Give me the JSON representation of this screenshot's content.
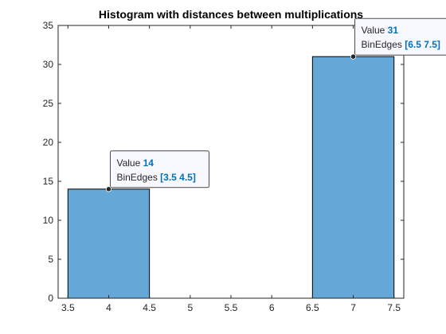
{
  "chart_data": {
    "type": "bar",
    "title": "Histogram with distances between multiplications",
    "xlabel": "",
    "ylabel": "",
    "xlim": [
      3.38,
      7.62
    ],
    "ylim": [
      0,
      35
    ],
    "xticks": [
      "3.5",
      "4",
      "4.5",
      "5",
      "5.5",
      "6",
      "6.5",
      "7",
      "7.5"
    ],
    "yticks": [
      "0",
      "5",
      "10",
      "15",
      "20",
      "25",
      "30",
      "35"
    ],
    "bins": [
      {
        "edges": [
          3.5,
          4.5
        ],
        "value": 14
      },
      {
        "edges": [
          4.5,
          5.5
        ],
        "value": 0
      },
      {
        "edges": [
          5.5,
          6.5
        ],
        "value": 0
      },
      {
        "edges": [
          6.5,
          7.5
        ],
        "value": 31
      }
    ],
    "bar_color": "#65a8d7",
    "datatips": [
      {
        "label_value": "Value",
        "value": "14",
        "label_edges": "BinEdges",
        "edges": "[3.5 4.5]",
        "x": 4,
        "y": 14
      },
      {
        "label_value": "Value",
        "value": "31",
        "label_edges": "BinEdges",
        "edges": "[6.5 7.5]",
        "x": 7,
        "y": 31
      }
    ],
    "grid": false,
    "legend": "none"
  }
}
